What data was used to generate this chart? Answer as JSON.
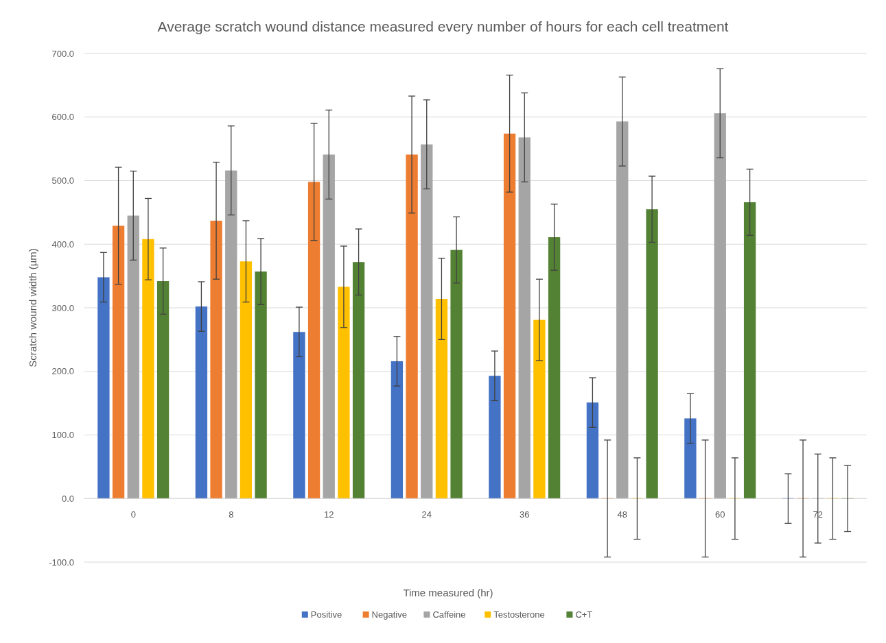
{
  "chart_data": {
    "type": "bar",
    "title": "Average scratch wound distance measured every number of hours for each cell treatment",
    "xlabel": "Time measured (hr)",
    "ylabel": "Scratch wound width (µm)",
    "categories": [
      "0",
      "8",
      "12",
      "24",
      "36",
      "48",
      "60",
      "72"
    ],
    "series": [
      {
        "name": "Positive",
        "color": "#4472c4",
        "values": [
          348,
          302,
          262,
          216,
          193,
          151,
          126,
          0
        ],
        "errors": [
          39,
          39,
          39,
          39,
          39,
          39,
          39,
          39
        ]
      },
      {
        "name": "Negative",
        "color": "#ed7d31",
        "values": [
          429,
          437,
          498,
          541,
          574,
          0,
          0,
          0
        ],
        "errors": [
          92,
          92,
          92,
          92,
          92,
          92,
          92,
          92
        ]
      },
      {
        "name": "Caffeine",
        "color": "#a5a5a5",
        "values": [
          445,
          516,
          541,
          557,
          568,
          593,
          606,
          0
        ],
        "errors": [
          70,
          70,
          70,
          70,
          70,
          70,
          70,
          70
        ]
      },
      {
        "name": "Testosterone",
        "color": "#ffc000",
        "values": [
          408,
          373,
          333,
          314,
          281,
          0,
          0,
          0
        ],
        "errors": [
          64,
          64,
          64,
          64,
          64,
          64,
          64,
          64
        ]
      },
      {
        "name": "C+T",
        "color": "#548235",
        "values": [
          342,
          357,
          372,
          391,
          411,
          455,
          466,
          0
        ],
        "errors": [
          52,
          52,
          52,
          52,
          52,
          52,
          52,
          52
        ]
      }
    ],
    "ylim": [
      -100,
      700
    ],
    "yticks": [
      {
        "value": -100,
        "label": "-100.0"
      },
      {
        "value": 0,
        "label": "0.0"
      },
      {
        "value": 100,
        "label": "100.0"
      },
      {
        "value": 200,
        "label": "200.0"
      },
      {
        "value": 300,
        "label": "300.0"
      },
      {
        "value": 400,
        "label": "400.0"
      },
      {
        "value": 500,
        "label": "500.0"
      },
      {
        "value": 600,
        "label": "600.0"
      },
      {
        "value": 700,
        "label": "700.0"
      }
    ],
    "grid": "y",
    "legend": "bottom"
  }
}
